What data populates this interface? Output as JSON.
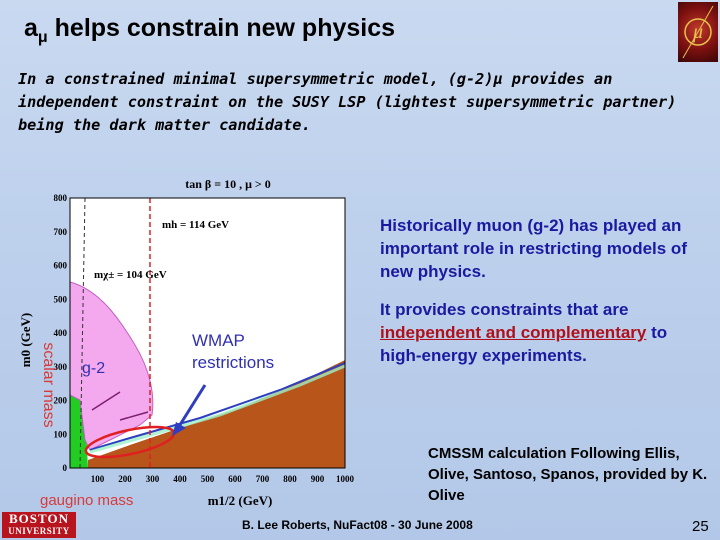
{
  "slide": {
    "title_prefix": "a",
    "title_sub": "μ",
    "title_rest": " helps constrain new physics",
    "intro": "In a constrained minimal supersymmetric model, (g-2)μ provides an independent constraint on the SUSY LSP (lightest supersymmetric partner) being the dark matter candidate.",
    "bullet1": "Historically muon (g-2) has played an important role in restricting models of new physics.",
    "bullet2_pre": "It provides constraints that are ",
    "bullet2_u": "independent and complementary",
    "bullet2_post": " to high-energy experiments.",
    "credit": "CMSSM calculation Following Ellis, Olive, Santoso, Spanos, provided by K. Olive",
    "footer": "B. Lee Roberts,  NuFact08 - 30 June 2008",
    "page": "25",
    "university_line1": "BOSTON",
    "university_line2": "UNIVERSITY",
    "logo_symbol": "μ"
  },
  "plot": {
    "header": "tan β = 10 ,  μ > 0",
    "xlabel": "m1/2 (GeV)",
    "ylabel": "m0 (GeV)",
    "x_ticks": [
      "100",
      "200",
      "300",
      "400",
      "500",
      "600",
      "700",
      "800",
      "900",
      "1000"
    ],
    "y_ticks": [
      "0",
      "100",
      "200",
      "300",
      "400",
      "500",
      "600",
      "700",
      "800"
    ],
    "label_mh": "mh = 114 GeV",
    "label_mchi": "mχ± = 104 GeV",
    "label_g2": "g-2",
    "label_wmap": "WMAP",
    "label_wmap2": "restrictions",
    "label_scalar": "scalar mass",
    "label_gaugino": "gaugino mass",
    "colors": {
      "pink": "#f4a9ee",
      "pink_edge": "#c060c0",
      "green": "#22cc22",
      "brown": "#b8551a",
      "wmap_blue": "#2d3fc0",
      "red_line": "#e02020",
      "annotation_blue": "#3030b0"
    }
  },
  "chart_data": {
    "type": "area",
    "title": "tan β = 10 ,  μ > 0",
    "xlabel": "m1/2 (GeV)",
    "ylabel": "m0 (GeV)",
    "xlim": [
      0,
      1000
    ],
    "ylim": [
      0,
      800
    ],
    "series": [
      {
        "name": "g-2",
        "x": [
          100,
          150,
          200,
          250,
          300,
          350,
          380,
          400
        ],
        "y": [
          560,
          500,
          420,
          330,
          240,
          150,
          110,
          70
        ]
      },
      {
        "name": "mh = 114 GeV",
        "x": [
          400,
          400
        ],
        "y": [
          0,
          800
        ]
      },
      {
        "name": "mχ± = 104 GeV",
        "x": [
          110,
          100
        ],
        "y": [
          0,
          800
        ]
      }
    ]
  }
}
